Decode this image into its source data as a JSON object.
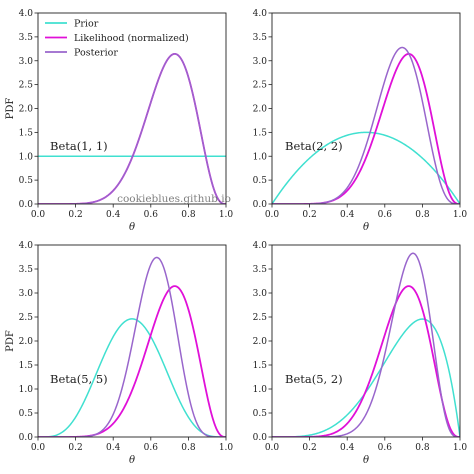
{
  "colors": {
    "prior": "#40e0d0",
    "likelihood": "#e010d8",
    "posterior": "#9966cc",
    "axis": "#222222"
  },
  "watermark": "cookieblues.github.io",
  "chart_data": [
    {
      "type": "line",
      "ylabel": "PDF",
      "xlabel": "θ",
      "xlim": [
        0,
        1
      ],
      "ylim": [
        0,
        4
      ],
      "xticks": [
        "0.0",
        "0.2",
        "0.4",
        "0.6",
        "0.8",
        "1.0"
      ],
      "yticks": [
        "0.0",
        "0.5",
        "1.0",
        "1.5",
        "2.0",
        "2.5",
        "3.0",
        "3.5",
        "4.0"
      ],
      "annotation": "Beta(1, 1)",
      "legend": {
        "position": "top-left",
        "entries": [
          "Prior",
          "Likelihood (normalized)",
          "Posterior"
        ]
      },
      "prior": {
        "a": 1,
        "b": 1
      },
      "likelihood": {
        "a": 9,
        "b": 4
      },
      "posterior": {
        "a": 9,
        "b": 4
      }
    },
    {
      "type": "line",
      "ylabel": "",
      "xlabel": "θ",
      "xlim": [
        0,
        1
      ],
      "ylim": [
        0,
        4
      ],
      "xticks": [
        "0.0",
        "0.2",
        "0.4",
        "0.6",
        "0.8",
        "1.0"
      ],
      "yticks": [
        "0.0",
        "0.5",
        "1.0",
        "1.5",
        "2.0",
        "2.5",
        "3.0",
        "3.5",
        "4.0"
      ],
      "annotation": "Beta(2, 2)",
      "prior": {
        "a": 2,
        "b": 2
      },
      "likelihood": {
        "a": 9,
        "b": 4
      },
      "posterior": {
        "a": 10,
        "b": 5
      }
    },
    {
      "type": "line",
      "ylabel": "PDF",
      "xlabel": "θ",
      "xlim": [
        0,
        1
      ],
      "ylim": [
        0,
        4
      ],
      "xticks": [
        "0.0",
        "0.2",
        "0.4",
        "0.6",
        "0.8",
        "1.0"
      ],
      "yticks": [
        "0.0",
        "0.5",
        "1.0",
        "1.5",
        "2.0",
        "2.5",
        "3.0",
        "3.5",
        "4.0"
      ],
      "annotation": "Beta(5, 5)",
      "prior": {
        "a": 5,
        "b": 5
      },
      "likelihood": {
        "a": 9,
        "b": 4
      },
      "posterior": {
        "a": 13,
        "b": 8
      }
    },
    {
      "type": "line",
      "ylabel": "",
      "xlabel": "θ",
      "xlim": [
        0,
        1
      ],
      "ylim": [
        0,
        4
      ],
      "xticks": [
        "0.0",
        "0.2",
        "0.4",
        "0.6",
        "0.8",
        "1.0"
      ],
      "yticks": [
        "0.0",
        "0.5",
        "1.0",
        "1.5",
        "2.0",
        "2.5",
        "3.0",
        "3.5",
        "4.0"
      ],
      "annotation": "Beta(5, 2)",
      "prior": {
        "a": 5,
        "b": 2
      },
      "likelihood": {
        "a": 9,
        "b": 4
      },
      "posterior": {
        "a": 13,
        "b": 5
      }
    }
  ]
}
